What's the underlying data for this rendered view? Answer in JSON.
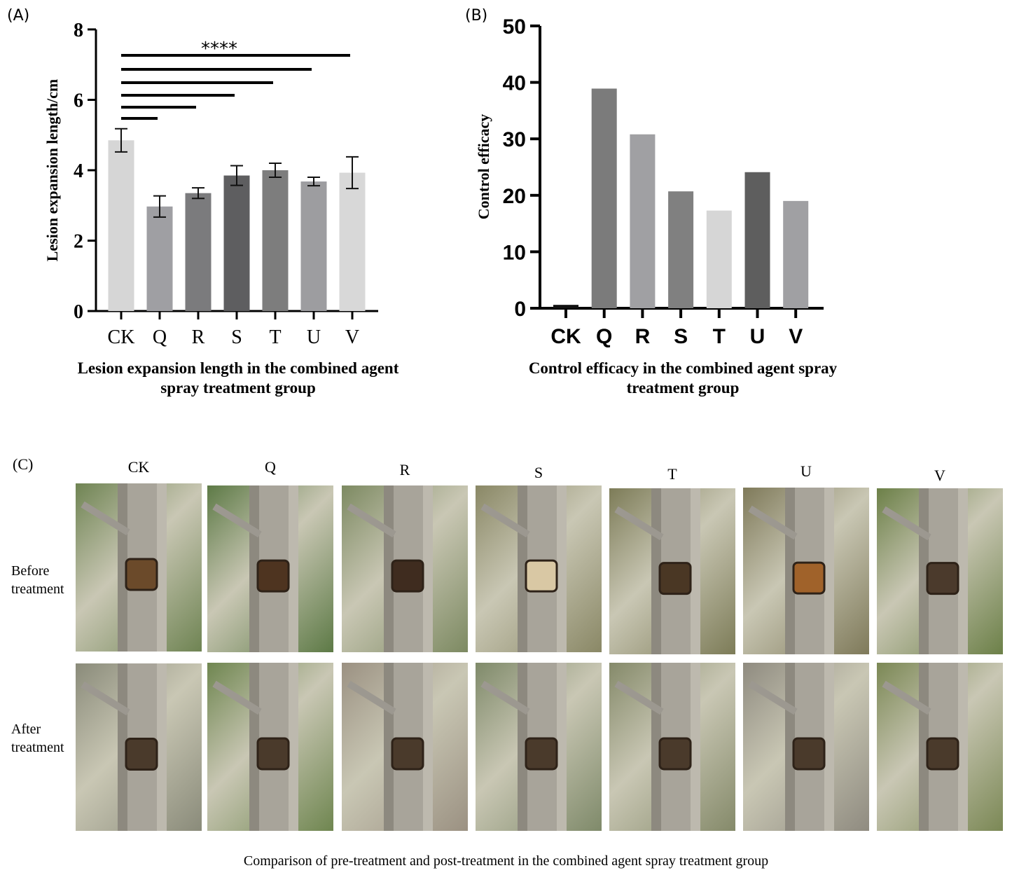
{
  "panel_labels": {
    "a": "(A)",
    "b": "(B)",
    "c": "(C)"
  },
  "chart_data": [
    {
      "type": "bar",
      "panel": "(A)",
      "categories": [
        "CK",
        "Q",
        "R",
        "S",
        "T",
        "U",
        "V"
      ],
      "values": [
        4.85,
        2.97,
        3.35,
        3.85,
        4.0,
        3.68,
        3.93
      ],
      "errors": [
        0.33,
        0.3,
        0.15,
        0.28,
        0.2,
        0.12,
        0.45
      ],
      "bar_colors": [
        "#d6d6d6",
        "#9f9fa3",
        "#7b7b7d",
        "#5e5e60",
        "#7d7d7d",
        "#9d9da0",
        "#d8d8d8"
      ],
      "ylabel": "Lesion expansion length/cm",
      "yticks": [
        "0",
        "2",
        "4",
        "6",
        "8"
      ],
      "ylim": [
        0,
        8
      ],
      "significance": "****",
      "significance_pairs": [
        [
          "CK",
          "Q"
        ],
        [
          "CK",
          "R"
        ],
        [
          "CK",
          "S"
        ],
        [
          "CK",
          "T"
        ],
        [
          "CK",
          "U"
        ],
        [
          "CK",
          "V"
        ]
      ],
      "caption": [
        "Lesion expansion length in the combined agent",
        "spray treatment group"
      ]
    },
    {
      "type": "bar",
      "panel": "(B)",
      "categories": [
        "CK",
        "Q",
        "R",
        "S",
        "T",
        "U",
        "V"
      ],
      "values": [
        0.6,
        38.9,
        30.8,
        20.7,
        17.3,
        24.1,
        19.0
      ],
      "bar_colors": [
        "#111111",
        "#7b7b7b",
        "#a0a0a3",
        "#808080",
        "#d6d6d6",
        "#5e5e5e",
        "#a0a0a3"
      ],
      "ylabel": "Control efficacy",
      "yticks": [
        "0",
        "10",
        "20",
        "30",
        "40",
        "50"
      ],
      "ylim": [
        0,
        50
      ],
      "caption": [
        "Control efficacy in the combined agent spray",
        "treatment group"
      ]
    }
  ],
  "photos": {
    "columns": [
      "CK",
      "Q",
      "R",
      "S",
      "T",
      "U",
      "V"
    ],
    "rows": [
      {
        "label": [
          "Before",
          "treatment"
        ]
      },
      {
        "label": [
          "After",
          "treatment"
        ]
      }
    ],
    "caption": "Comparison of pre-treatment and post-treatment in the combined agent spray treatment group"
  }
}
